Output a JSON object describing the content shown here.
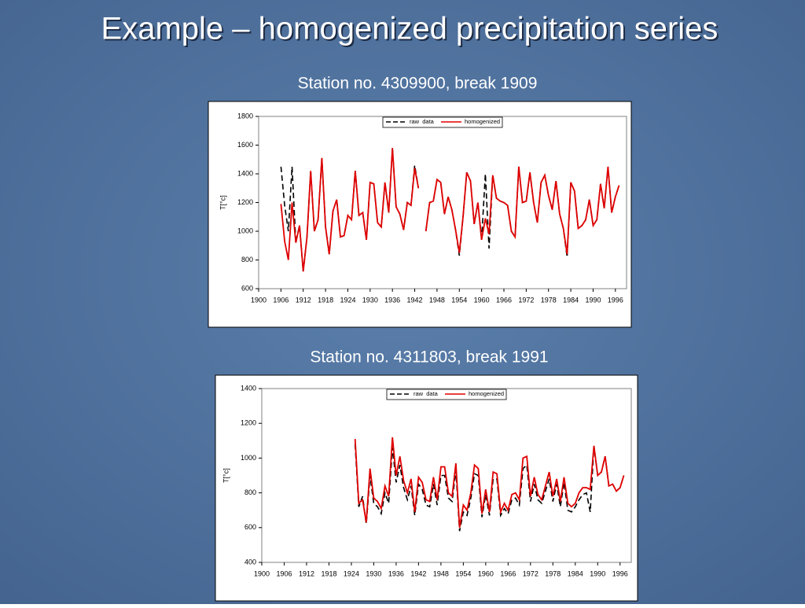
{
  "slide": {
    "title": "Example – homogenized precipitation series"
  },
  "chart_data": [
    {
      "type": "line",
      "title": "Station no. 4309900, break 1909",
      "y_label": "T[°c]",
      "xlim": [
        1900,
        1999
      ],
      "xticks": [
        1900,
        1906,
        1912,
        1918,
        1924,
        1930,
        1936,
        1942,
        1948,
        1954,
        1960,
        1966,
        1972,
        1978,
        1984,
        1990,
        1996
      ],
      "ylim": [
        600,
        1800
      ],
      "yticks": [
        600,
        800,
        1000,
        1200,
        1400,
        1600,
        1800
      ],
      "x": [
        1906,
        1907,
        1908,
        1909,
        1910,
        1911,
        1912,
        1913,
        1914,
        1915,
        1916,
        1917,
        1918,
        1919,
        1920,
        1921,
        1922,
        1923,
        1924,
        1925,
        1926,
        1927,
        1928,
        1929,
        1930,
        1931,
        1932,
        1933,
        1934,
        1935,
        1936,
        1937,
        1938,
        1939,
        1940,
        1941,
        1942,
        1943,
        1944,
        1945,
        1946,
        1947,
        1948,
        1949,
        1950,
        1951,
        1952,
        1953,
        1954,
        1955,
        1956,
        1957,
        1958,
        1959,
        1960,
        1961,
        1962,
        1963,
        1964,
        1965,
        1966,
        1967,
        1968,
        1969,
        1970,
        1971,
        1972,
        1973,
        1974,
        1975,
        1976,
        1977,
        1978,
        1979,
        1980,
        1981,
        1982,
        1983,
        1984,
        1985,
        1986,
        1987,
        1988,
        1989,
        1990,
        1991,
        1992,
        1993,
        1994,
        1995,
        1996,
        1997
      ],
      "series": [
        {
          "name": "raw  data",
          "color": "#000000",
          "dash": true,
          "values": [
            1450,
            1180,
            1000,
            1450,
            920,
            1040,
            720,
            960,
            1420,
            1000,
            1080,
            1510,
            1030,
            840,
            1140,
            1220,
            960,
            970,
            1110,
            1080,
            1420,
            1110,
            1130,
            940,
            1340,
            1330,
            1060,
            1030,
            1340,
            1130,
            1580,
            1170,
            1120,
            1010,
            1200,
            1180,
            1460,
            1300,
            null,
            1000,
            1200,
            1210,
            1360,
            1340,
            1120,
            1240,
            1150,
            1010,
            830,
            1100,
            1410,
            1350,
            1050,
            1200,
            940,
            1400,
            880,
            1390,
            1230,
            1210,
            1200,
            1180,
            1000,
            960,
            1450,
            1200,
            1210,
            1410,
            1200,
            1060,
            1340,
            1390,
            1250,
            1150,
            1350,
            1120,
            1020,
            820,
            1340,
            1280,
            1020,
            1040,
            1080,
            1220,
            1040,
            1080,
            1330,
            1160,
            1450,
            1130,
            1240,
            1320
          ]
        },
        {
          "name": "homogenized",
          "color": "#e00000",
          "dash": false,
          "values": [
            1190,
            930,
            800,
            1200,
            920,
            1040,
            720,
            960,
            1420,
            1000,
            1080,
            1510,
            1030,
            840,
            1140,
            1220,
            960,
            970,
            1110,
            1080,
            1420,
            1110,
            1130,
            940,
            1340,
            1330,
            1060,
            1030,
            1340,
            1130,
            1580,
            1170,
            1120,
            1010,
            1200,
            1180,
            1440,
            1300,
            null,
            1000,
            1200,
            1210,
            1360,
            1340,
            1120,
            1240,
            1150,
            1010,
            850,
            1100,
            1410,
            1350,
            1050,
            1200,
            940,
            1090,
            980,
            1390,
            1230,
            1210,
            1200,
            1180,
            1000,
            960,
            1450,
            1200,
            1210,
            1410,
            1200,
            1060,
            1340,
            1390,
            1250,
            1150,
            1350,
            1120,
            1020,
            840,
            1340,
            1280,
            1020,
            1040,
            1080,
            1220,
            1040,
            1080,
            1330,
            1160,
            1450,
            1130,
            1240,
            1320
          ]
        }
      ]
    },
    {
      "type": "line",
      "title": "Station no. 4311803, break 1991",
      "y_label": "T[°c]",
      "xlim": [
        1900,
        1999
      ],
      "xticks": [
        1900,
        1906,
        1912,
        1918,
        1924,
        1930,
        1936,
        1942,
        1948,
        1954,
        1960,
        1966,
        1972,
        1978,
        1984,
        1990,
        1996
      ],
      "ylim": [
        400,
        1400
      ],
      "yticks": [
        400,
        600,
        800,
        1000,
        1200,
        1400
      ],
      "x": [
        1925,
        1926,
        1927,
        1928,
        1929,
        1930,
        1931,
        1932,
        1933,
        1934,
        1935,
        1936,
        1937,
        1938,
        1939,
        1940,
        1941,
        1942,
        1943,
        1944,
        1945,
        1946,
        1947,
        1948,
        1949,
        1950,
        1951,
        1952,
        1953,
        1954,
        1955,
        1956,
        1957,
        1958,
        1959,
        1960,
        1961,
        1962,
        1963,
        1964,
        1965,
        1966,
        1967,
        1968,
        1969,
        1970,
        1971,
        1972,
        1973,
        1974,
        1975,
        1976,
        1977,
        1978,
        1979,
        1980,
        1981,
        1982,
        1983,
        1984,
        1985,
        1986,
        1987,
        1988,
        1989,
        1990,
        1991,
        1992,
        1993,
        1994,
        1995,
        1996,
        1997
      ],
      "series": [
        {
          "name": "raw  data",
          "color": "#000000",
          "dash": true,
          "values": [
            1080,
            720,
            780,
            620,
            900,
            740,
            720,
            680,
            800,
            740,
            1060,
            860,
            960,
            830,
            760,
            840,
            670,
            850,
            820,
            730,
            720,
            850,
            730,
            900,
            900,
            770,
            750,
            930,
            580,
            690,
            670,
            770,
            910,
            900,
            660,
            790,
            670,
            880,
            880,
            670,
            710,
            680,
            760,
            770,
            730,
            940,
            960,
            750,
            850,
            760,
            740,
            810,
            880,
            750,
            850,
            720,
            860,
            700,
            690,
            720,
            760,
            790,
            800,
            690,
            1070,
            900,
            920,
            1010,
            840,
            850,
            810,
            830,
            900
          ]
        },
        {
          "name": "homogenized",
          "color": "#e00000",
          "dash": false,
          "values": [
            1110,
            740,
            760,
            630,
            940,
            770,
            750,
            710,
            840,
            780,
            1120,
            900,
            1010,
            870,
            800,
            880,
            690,
            890,
            860,
            760,
            750,
            890,
            760,
            950,
            950,
            800,
            780,
            970,
            600,
            730,
            700,
            800,
            960,
            940,
            680,
            820,
            690,
            920,
            910,
            690,
            740,
            700,
            790,
            800,
            760,
            1000,
            1010,
            780,
            890,
            790,
            760,
            840,
            920,
            780,
            880,
            750,
            890,
            740,
            720,
            740,
            800,
            830,
            830,
            820,
            1070,
            900,
            920,
            1010,
            840,
            850,
            810,
            830,
            900
          ]
        }
      ]
    }
  ]
}
